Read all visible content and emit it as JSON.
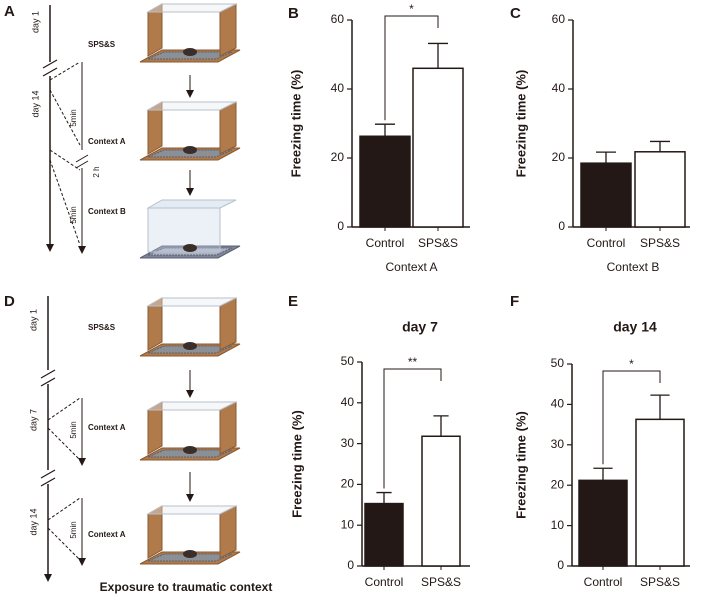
{
  "chart_data": [
    {
      "type": "bar",
      "panel": "B",
      "ylabel": "Freezing time (%)",
      "xlabel": "Context A",
      "categories": [
        "Control",
        "SPS&S"
      ],
      "values": [
        26.3,
        46
      ],
      "errors": [
        3.5,
        7.2
      ],
      "colors": [
        "#231815",
        "#ffffff"
      ],
      "ylim": [
        0,
        60
      ],
      "yticks": [
        0,
        20,
        40,
        60
      ],
      "significance": "*"
    },
    {
      "type": "bar",
      "panel": "C",
      "ylabel": "Freezing time (%)",
      "xlabel": "Context B",
      "categories": [
        "Control",
        "SPS&S"
      ],
      "values": [
        18.5,
        21.8
      ],
      "errors": [
        3.2,
        3
      ],
      "colors": [
        "#231815",
        "#ffffff"
      ],
      "ylim": [
        0,
        60
      ],
      "yticks": [
        0,
        20,
        40,
        60
      ]
    },
    {
      "type": "bar",
      "panel": "E",
      "title": "day 7",
      "ylabel": "Freezing time (%)",
      "categories": [
        "Control",
        "SPS&S"
      ],
      "values": [
        15.3,
        31.8
      ],
      "errors": [
        2.7,
        5
      ],
      "colors": [
        "#231815",
        "#ffffff"
      ],
      "ylim": [
        0,
        50
      ],
      "yticks": [
        0,
        10,
        20,
        30,
        40,
        50
      ],
      "significance": "**"
    },
    {
      "type": "bar",
      "panel": "F",
      "title": "day 14",
      "ylabel": "Freezing time (%)",
      "categories": [
        "Control",
        "SPS&S"
      ],
      "values": [
        21.2,
        36.3
      ],
      "errors": [
        3,
        6
      ],
      "colors": [
        "#231815",
        "#ffffff"
      ],
      "ylim": [
        0,
        50
      ],
      "yticks": [
        0,
        10,
        20,
        30,
        40,
        50
      ],
      "significance": "*"
    }
  ],
  "diagrams": [
    {
      "panel": "A",
      "days": [
        "day 1",
        "day 14"
      ],
      "steps": [
        "SPS&S",
        "Context A",
        "Context B"
      ],
      "durations": [
        "5min",
        "5min"
      ],
      "interval": "2 h"
    },
    {
      "panel": "D",
      "days": [
        "day 1",
        "day 7",
        "day 14"
      ],
      "steps": [
        "SPS&S",
        "Context A",
        "Context A"
      ],
      "durations": [
        "5min",
        "5min"
      ],
      "caption": "Exposure to traumatic context"
    }
  ]
}
